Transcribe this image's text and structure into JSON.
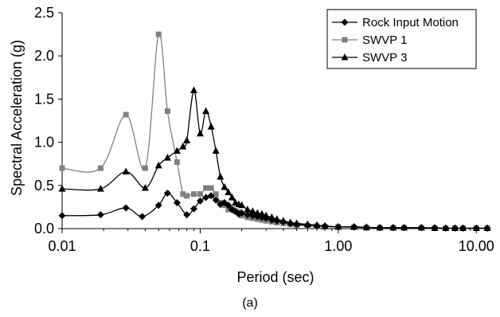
{
  "caption": "(a)",
  "chart_data": {
    "type": "line",
    "xlabel": "Period (sec)",
    "ylabel": "Spectral Acceleration (g)",
    "xscale": "log",
    "xlim": [
      0.01,
      12
    ],
    "ylim": [
      0,
      2.5
    ],
    "xticks": [
      0.01,
      0.1,
      1,
      10
    ],
    "xtick_labels": [
      "0.01",
      "0.1",
      "1.00",
      "10.00"
    ],
    "yticks": [
      0,
      0.5,
      1.0,
      1.5,
      2.0,
      2.5
    ],
    "ytick_labels": [
      "0.0",
      "0.5",
      "1.0",
      "1.5",
      "2.0",
      "2.5"
    ],
    "grid": false,
    "legend_position": "top-right",
    "series": [
      {
        "name": "Rock Input Motion",
        "color": "#000000",
        "marker": "diamond",
        "x": [
          0.01,
          0.019,
          0.029,
          0.038,
          0.05,
          0.058,
          0.068,
          0.08,
          0.09,
          0.1,
          0.11,
          0.12,
          0.13,
          0.14,
          0.15,
          0.16,
          0.17,
          0.18,
          0.19,
          0.2,
          0.22,
          0.24,
          0.26,
          0.28,
          0.3,
          0.33,
          0.36,
          0.4,
          0.45,
          0.5,
          0.6,
          0.7,
          0.8,
          1.0,
          1.3,
          1.6,
          2.0,
          2.5,
          3.0,
          4.0,
          5.0,
          6.0,
          7.0,
          8.0,
          10.0,
          12.0
        ],
        "y": [
          0.15,
          0.16,
          0.24,
          0.14,
          0.27,
          0.41,
          0.3,
          0.16,
          0.23,
          0.32,
          0.36,
          0.38,
          0.33,
          0.28,
          0.3,
          0.27,
          0.22,
          0.2,
          0.17,
          0.18,
          0.16,
          0.15,
          0.14,
          0.13,
          0.12,
          0.1,
          0.09,
          0.08,
          0.06,
          0.05,
          0.04,
          0.03,
          0.03,
          0.02,
          0.02,
          0.015,
          0.01,
          0.01,
          0.01,
          0.01,
          0.01,
          0.005,
          0.005,
          0.005,
          0.005,
          0.005
        ]
      },
      {
        "name": "SWVP 1",
        "color": "#808080",
        "marker": "square",
        "x": [
          0.01,
          0.019,
          0.029,
          0.04,
          0.05,
          0.058,
          0.068,
          0.075,
          0.08,
          0.09,
          0.1,
          0.11,
          0.12,
          0.13,
          0.14,
          0.15,
          0.16,
          0.17,
          0.18,
          0.19,
          0.2,
          0.22,
          0.24,
          0.26,
          0.28,
          0.3,
          0.33,
          0.36,
          0.4,
          0.45,
          0.5,
          0.6,
          0.7,
          0.8,
          1.0,
          1.3,
          1.6,
          2.0,
          2.5,
          3.0,
          4.0,
          5.0,
          6.0,
          7.0,
          8.0,
          10.0,
          12.0
        ],
        "y": [
          0.7,
          0.7,
          1.32,
          0.7,
          2.25,
          1.36,
          0.77,
          0.4,
          0.38,
          0.4,
          0.4,
          0.47,
          0.47,
          0.4,
          0.3,
          0.27,
          0.22,
          0.23,
          0.2,
          0.19,
          0.15,
          0.13,
          0.12,
          0.11,
          0.1,
          0.09,
          0.08,
          0.07,
          0.06,
          0.05,
          0.04,
          0.03,
          0.03,
          0.02,
          0.02,
          0.015,
          0.01,
          0.01,
          0.01,
          0.01,
          0.01,
          0.005,
          0.005,
          0.005,
          0.005,
          0.005,
          0.005
        ]
      },
      {
        "name": "SWVP 3",
        "color": "#000000",
        "marker": "triangle",
        "x": [
          0.01,
          0.019,
          0.029,
          0.04,
          0.05,
          0.058,
          0.068,
          0.075,
          0.08,
          0.09,
          0.1,
          0.11,
          0.12,
          0.13,
          0.14,
          0.15,
          0.16,
          0.17,
          0.18,
          0.19,
          0.2,
          0.22,
          0.24,
          0.26,
          0.28,
          0.3,
          0.33,
          0.36,
          0.4,
          0.45,
          0.5,
          0.6,
          0.7,
          0.8,
          1.0,
          1.3,
          1.6,
          2.0,
          2.5,
          3.0,
          4.0,
          5.0,
          6.0,
          7.0,
          8.0,
          10.0,
          12.0
        ],
        "y": [
          0.46,
          0.46,
          0.66,
          0.47,
          0.73,
          0.82,
          0.9,
          0.95,
          1.02,
          1.6,
          1.1,
          1.36,
          1.18,
          0.9,
          0.6,
          0.48,
          0.42,
          0.36,
          0.3,
          0.28,
          0.27,
          0.22,
          0.2,
          0.18,
          0.17,
          0.15,
          0.13,
          0.11,
          0.09,
          0.07,
          0.06,
          0.05,
          0.04,
          0.03,
          0.02,
          0.02,
          0.015,
          0.01,
          0.01,
          0.01,
          0.01,
          0.005,
          0.005,
          0.005,
          0.005,
          0.005,
          0.005
        ]
      }
    ]
  }
}
